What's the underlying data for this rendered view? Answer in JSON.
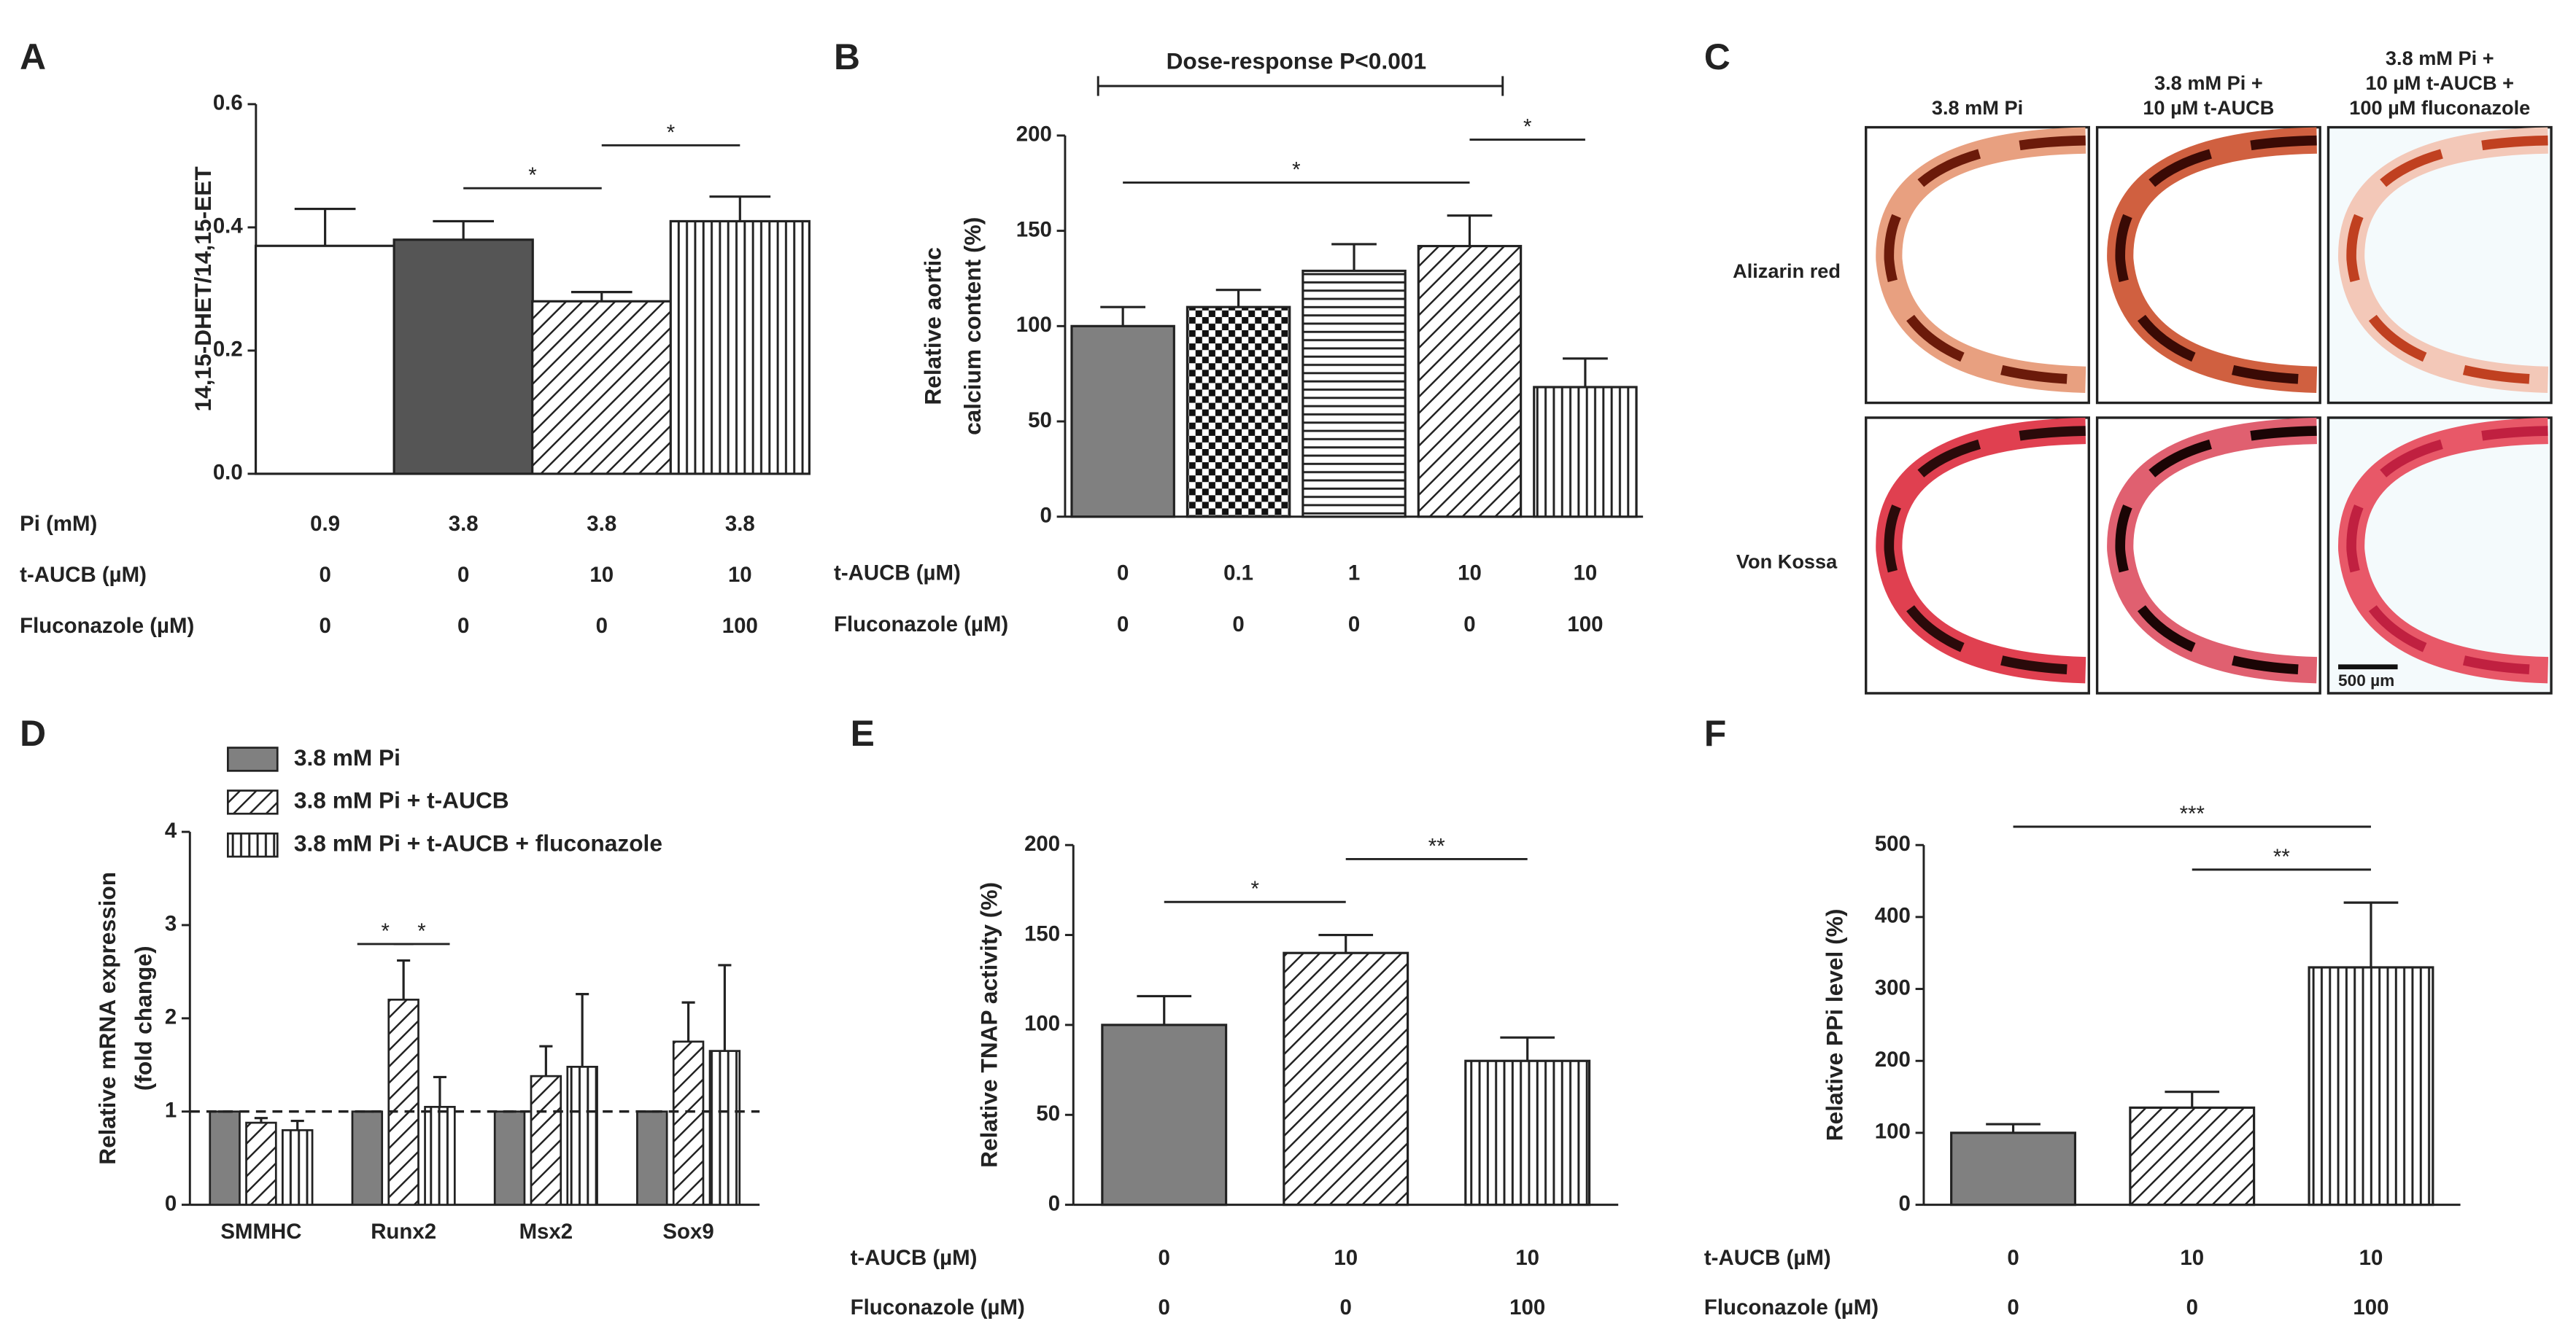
{
  "chart_data": [
    {
      "type": "bar",
      "panel": "A",
      "ylabel": [
        "14,15-DHET/14,15-EET"
      ],
      "values": [
        0.37,
        0.38,
        0.28,
        0.41
      ],
      "errors": [
        0.06,
        0.03,
        0.015,
        0.04
      ],
      "patterns": [
        "white",
        "dark",
        "diagonal",
        "vertical"
      ],
      "ylim": [
        0,
        0.6
      ],
      "yticks": [
        {
          "value": 0,
          "label": "0.0"
        },
        0.2,
        0.4,
        0.6
      ],
      "conditions": [
        {
          "label": "Pi (mM)",
          "values": [
            0.9,
            3.8,
            3.8,
            3.8
          ]
        },
        {
          "label": "t-AUCB (µM)",
          "values": [
            0,
            0,
            10,
            10
          ]
        },
        {
          "label": "Fluconazole (µM)",
          "values": [
            0,
            0,
            0,
            100
          ]
        }
      ],
      "significance": [
        {
          "between": [
            1,
            2
          ],
          "label": "*"
        },
        {
          "between": [
            2,
            3
          ],
          "label": "*"
        }
      ]
    },
    {
      "type": "bar",
      "panel": "B",
      "ylabel": [
        "Relative aortic",
        "calcium content (%)"
      ],
      "values": [
        100,
        110,
        129,
        142,
        68
      ],
      "errors": [
        10,
        9,
        14,
        16,
        15
      ],
      "patterns": [
        "gray",
        "checker",
        "horizontal",
        "diagonal",
        "vertical"
      ],
      "ylim": [
        0,
        200
      ],
      "yticks": [
        0,
        50,
        100,
        150,
        200
      ],
      "conditions": [
        {
          "label": "t-AUCB (µM)",
          "values": [
            0,
            0.1,
            1,
            10,
            10
          ]
        },
        {
          "label": "Fluconazole (µM)",
          "values": [
            0,
            0,
            0,
            0,
            100
          ]
        }
      ],
      "trend": {
        "between": [
          0,
          3
        ],
        "label": "Dose-response P<0.001"
      },
      "significance": [
        {
          "between": [
            0,
            3
          ],
          "label": "*"
        },
        {
          "between": [
            3,
            4
          ],
          "label": "*"
        }
      ]
    },
    {
      "type": "grouped_bar",
      "panel": "D",
      "ylabel": [
        "Relative mRNA expression",
        "(fold change)"
      ],
      "categories": [
        "SMMHC",
        "Runx2",
        "Msx2",
        "Sox9"
      ],
      "series": [
        {
          "name": "3.8 mM Pi",
          "pattern": "gray",
          "values": [
            1,
            1,
            1,
            1
          ],
          "errors": [
            0,
            0,
            0,
            0
          ]
        },
        {
          "name": "3.8 mM Pi + t-AUCB",
          "pattern": "diagonal",
          "values": [
            0.88,
            2.2,
            1.38,
            1.75
          ],
          "errors": [
            0.05,
            0.42,
            0.32,
            0.42
          ]
        },
        {
          "name": "3.8 mM Pi + t-AUCB + fluconazole",
          "pattern": "vertical",
          "values": [
            0.8,
            1.05,
            1.48,
            1.65
          ],
          "errors": [
            0.1,
            0.32,
            0.78,
            0.92
          ]
        }
      ],
      "ylim": [
        0,
        4
      ],
      "yticks": [
        0,
        1,
        2,
        3,
        4
      ],
      "reference_line": 1,
      "significance": [
        {
          "category": 1,
          "between": [
            0,
            1
          ],
          "label": "*"
        },
        {
          "category": 1,
          "between": [
            1,
            2
          ],
          "label": "*"
        }
      ]
    },
    {
      "type": "bar",
      "panel": "E",
      "ylabel": [
        "Relative TNAP activity (%)"
      ],
      "values": [
        100,
        140,
        80
      ],
      "errors": [
        16,
        10,
        13
      ],
      "patterns": [
        "gray",
        "diagonal",
        "vertical"
      ],
      "ylim": [
        0,
        200
      ],
      "yticks": [
        0,
        50,
        100,
        150,
        200
      ],
      "conditions": [
        {
          "label": "t-AUCB (µM)",
          "values": [
            0,
            10,
            10
          ]
        },
        {
          "label": "Fluconazole (µM)",
          "values": [
            0,
            0,
            100
          ]
        }
      ],
      "significance": [
        {
          "between": [
            0,
            1
          ],
          "label": "*"
        },
        {
          "between": [
            1,
            2
          ],
          "label": "**"
        }
      ]
    },
    {
      "type": "bar",
      "panel": "F",
      "ylabel": [
        "Relative PPi level (%)"
      ],
      "values": [
        100,
        135,
        330
      ],
      "errors": [
        12,
        22,
        90
      ],
      "patterns": [
        "gray",
        "diagonal",
        "vertical"
      ],
      "ylim": [
        0,
        500
      ],
      "yticks": [
        0,
        100,
        200,
        300,
        400,
        500
      ],
      "conditions": [
        {
          "label": "t-AUCB (µM)",
          "values": [
            0,
            10,
            10
          ]
        },
        {
          "label": "Fluconazole (µM)",
          "values": [
            0,
            0,
            100
          ]
        }
      ],
      "significance": [
        {
          "between": [
            1,
            2
          ],
          "label": "**"
        },
        {
          "between": [
            0,
            2
          ],
          "label": "***"
        }
      ]
    }
  ],
  "panel_c": {
    "panel": "C",
    "columns": [
      [
        "3.8 mM Pi"
      ],
      [
        "3.8 mM Pi +",
        "10 µM t-AUCB"
      ],
      [
        "3.8 mM Pi +",
        "10 µM t-AUCB +",
        "100 µM fluconazole"
      ]
    ],
    "rows": [
      "Alizarin red",
      "Von Kossa"
    ],
    "scale_bar": "500 µm"
  }
}
